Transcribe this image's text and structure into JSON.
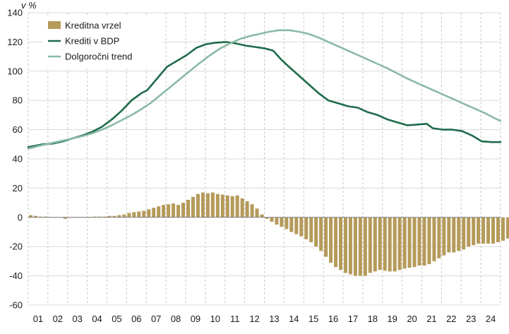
{
  "chart_data": {
    "type": "bar+line",
    "y_unit_label": "v %",
    "ylim": [
      -60,
      140
    ],
    "yticks": [
      140,
      120,
      100,
      80,
      60,
      40,
      20,
      0,
      -20,
      -40,
      -60
    ],
    "x_categories": [
      "01",
      "02",
      "03",
      "04",
      "05",
      "06",
      "07",
      "08",
      "09",
      "10",
      "11",
      "12",
      "13",
      "14",
      "15",
      "16",
      "17",
      "18",
      "19",
      "20",
      "21",
      "22",
      "23",
      "24"
    ],
    "x_range": [
      2000.75,
      2024.75
    ],
    "grid": "dashed vertical gridlines at year boundaries; solid horizontal gridlines",
    "legend_position": "top-left",
    "series": [
      {
        "name": "Kreditna vrzel",
        "type": "bar",
        "color": "#b59a5a",
        "x_start": 2000.75,
        "x_step": 0.25,
        "values": [
          1.5,
          1,
          0.5,
          0.5,
          0,
          0,
          0,
          -1,
          0,
          0,
          0,
          0,
          0,
          0.5,
          0.5,
          0.5,
          1,
          1,
          1.5,
          2,
          3,
          3.5,
          4,
          4.5,
          5.5,
          6.5,
          7.5,
          8.5,
          9,
          9.5,
          8.5,
          10,
          12,
          14,
          16,
          17,
          16.5,
          17,
          16,
          15.5,
          15,
          14.5,
          15,
          13,
          11,
          9,
          6,
          2,
          -1,
          -3,
          -5,
          -6.5,
          -8,
          -10,
          -11.5,
          -13,
          -15,
          -17,
          -20,
          -23,
          -27,
          -31,
          -34,
          -36,
          -38,
          -39,
          -40,
          -40,
          -40,
          -38,
          -37,
          -36,
          -36.5,
          -37,
          -37,
          -36,
          -35,
          -34.5,
          -34,
          -33,
          -33,
          -32,
          -30,
          -28,
          -26,
          -24,
          -24,
          -23,
          -22,
          -20,
          -19,
          -18,
          -18,
          -18,
          -18,
          -17,
          -16,
          -14.5,
          -13,
          -11.5
        ]
      },
      {
        "name": "Krediti v BDP",
        "type": "line",
        "color": "#1f6b4a",
        "points": [
          [
            2000.75,
            48
          ],
          [
            2001.5,
            50
          ],
          [
            2002.0,
            50.5
          ],
          [
            2002.5,
            52
          ],
          [
            2003.0,
            54
          ],
          [
            2003.5,
            56
          ],
          [
            2004.0,
            58.5
          ],
          [
            2004.5,
            62
          ],
          [
            2005.0,
            67
          ],
          [
            2005.5,
            73
          ],
          [
            2006.0,
            80
          ],
          [
            2006.5,
            85
          ],
          [
            2006.8,
            87
          ],
          [
            2007.3,
            95
          ],
          [
            2007.8,
            103
          ],
          [
            2008.3,
            107
          ],
          [
            2008.8,
            111
          ],
          [
            2009.3,
            116
          ],
          [
            2009.8,
            118.5
          ],
          [
            2010.3,
            119.5
          ],
          [
            2010.8,
            120
          ],
          [
            2011.3,
            119
          ],
          [
            2011.8,
            117.5
          ],
          [
            2012.3,
            116.5
          ],
          [
            2012.8,
            115.5
          ],
          [
            2013.2,
            114
          ],
          [
            2013.6,
            108
          ],
          [
            2014.0,
            103
          ],
          [
            2014.5,
            97
          ],
          [
            2015.0,
            91
          ],
          [
            2015.5,
            85
          ],
          [
            2016.0,
            80
          ],
          [
            2016.5,
            78
          ],
          [
            2017.0,
            76
          ],
          [
            2017.5,
            75
          ],
          [
            2018.0,
            72
          ],
          [
            2018.5,
            70
          ],
          [
            2019.0,
            67
          ],
          [
            2019.5,
            65
          ],
          [
            2020.0,
            63
          ],
          [
            2020.5,
            63.5
          ],
          [
            2021.0,
            64
          ],
          [
            2021.3,
            61
          ],
          [
            2021.8,
            60
          ],
          [
            2022.3,
            60
          ],
          [
            2022.8,
            59
          ],
          [
            2023.3,
            56
          ],
          [
            2023.8,
            52
          ],
          [
            2024.3,
            51.5
          ],
          [
            2024.75,
            51.5
          ]
        ]
      },
      {
        "name": "Dolgoročni trend",
        "type": "line",
        "color": "#8ab9a6",
        "points": [
          [
            2000.75,
            47
          ],
          [
            2001.5,
            49.5
          ],
          [
            2002.0,
            51
          ],
          [
            2002.5,
            52.5
          ],
          [
            2003.0,
            54
          ],
          [
            2003.5,
            55.5
          ],
          [
            2004.0,
            57.5
          ],
          [
            2004.5,
            60
          ],
          [
            2005.0,
            63
          ],
          [
            2005.5,
            66.5
          ],
          [
            2006.0,
            70
          ],
          [
            2006.5,
            74
          ],
          [
            2007.0,
            78.5
          ],
          [
            2007.5,
            84
          ],
          [
            2008.0,
            89.5
          ],
          [
            2008.5,
            95
          ],
          [
            2009.0,
            100.5
          ],
          [
            2009.5,
            106
          ],
          [
            2010.0,
            111
          ],
          [
            2010.5,
            115.5
          ],
          [
            2011.0,
            119
          ],
          [
            2011.5,
            122
          ],
          [
            2012.0,
            124
          ],
          [
            2012.5,
            125.5
          ],
          [
            2013.0,
            127
          ],
          [
            2013.5,
            128
          ],
          [
            2014.0,
            128
          ],
          [
            2014.5,
            127
          ],
          [
            2015.0,
            125.5
          ],
          [
            2015.5,
            123
          ],
          [
            2016.0,
            120
          ],
          [
            2016.5,
            117
          ],
          [
            2017.0,
            114
          ],
          [
            2017.5,
            111
          ],
          [
            2018.0,
            108
          ],
          [
            2018.5,
            105
          ],
          [
            2019.0,
            102
          ],
          [
            2019.5,
            98.5
          ],
          [
            2020.0,
            95
          ],
          [
            2020.5,
            92
          ],
          [
            2021.0,
            89
          ],
          [
            2021.5,
            86
          ],
          [
            2022.0,
            83
          ],
          [
            2022.5,
            80
          ],
          [
            2023.0,
            77
          ],
          [
            2023.5,
            74
          ],
          [
            2024.0,
            71
          ],
          [
            2024.5,
            67.5
          ],
          [
            2024.75,
            66
          ]
        ]
      }
    ]
  }
}
